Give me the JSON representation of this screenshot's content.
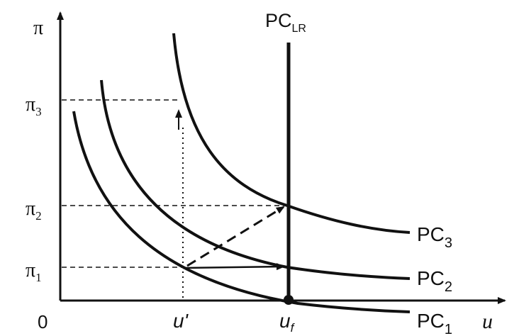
{
  "axes": {
    "y_label": "π",
    "x_label": "u",
    "origin_label": "0"
  },
  "y_ticks": {
    "pi3": {
      "base": "π",
      "sub": "3"
    },
    "pi2": {
      "base": "π",
      "sub": "2"
    },
    "pi1": {
      "base": "π",
      "sub": "1"
    }
  },
  "x_ticks": {
    "u_prime": "u'",
    "u_f": {
      "base": "u",
      "sub": "f"
    }
  },
  "curves": {
    "pc1": {
      "base": "PC",
      "sub": "1"
    },
    "pc2": {
      "base": "PC",
      "sub": "2"
    },
    "pc3": {
      "base": "PC",
      "sub": "3"
    },
    "pclr": {
      "base": "PC",
      "sub": "LR"
    }
  },
  "colors": {
    "ink": "#111111",
    "background": "#ffffff"
  }
}
